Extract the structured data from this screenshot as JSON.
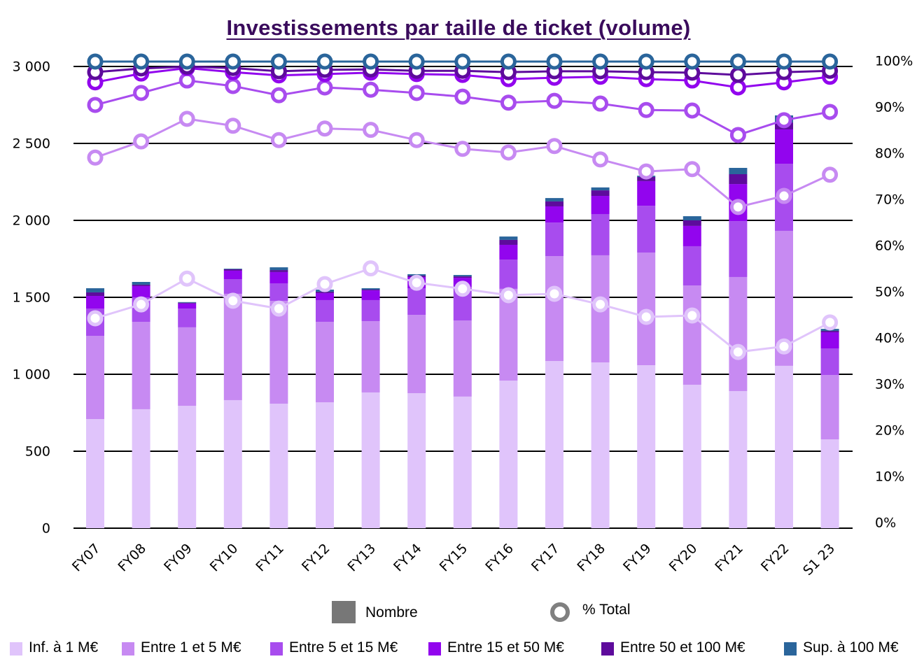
{
  "chart_data": {
    "type": "bar",
    "title": "Investissements par taille de ticket (volume)",
    "xlabel": "",
    "ylabel": "",
    "categories": [
      "FY07",
      "FY08",
      "FY09",
      "FY10",
      "FY11",
      "FY12",
      "FY13",
      "FY14",
      "FY15",
      "FY16",
      "FY17",
      "FY18",
      "FY19",
      "FY20",
      "FY21",
      "FY22",
      "S1 23"
    ],
    "left_axis": {
      "ylim": [
        0,
        3000
      ],
      "ticks": [
        0,
        500,
        1000,
        1500,
        2000,
        2500,
        3000
      ],
      "tick_labels": [
        "0",
        "500",
        "1 000",
        "1 500",
        "2 000",
        "2 500",
        "3 000"
      ],
      "grid": true
    },
    "right_axis": {
      "ylim": [
        0,
        100
      ],
      "ticks": [
        0,
        10,
        20,
        30,
        40,
        50,
        60,
        70,
        80,
        90,
        100
      ],
      "tick_labels": [
        "0%",
        "10%",
        "20%",
        "30%",
        "40%",
        "50%",
        "60%",
        "70%",
        "80%",
        "90%",
        "100%"
      ]
    },
    "stacked": true,
    "series": [
      {
        "name": "Inf. à 1 M€",
        "color": "#e0c4fb",
        "values": [
          709,
          773,
          795,
          832,
          809,
          818,
          882,
          877,
          855,
          959,
          1086,
          1077,
          1059,
          932,
          891,
          1055,
          577
        ]
      },
      {
        "name": "Entre 1 et 5 M€",
        "color": "#c78af2",
        "values": [
          541,
          567,
          510,
          691,
          668,
          523,
          463,
          509,
          495,
          596,
          682,
          696,
          732,
          645,
          741,
          877,
          418
        ]
      },
      {
        "name": "Entre 5 et 15 M€",
        "color": "#a84cee",
        "values": [
          177,
          160,
          122,
          95,
          114,
          141,
          137,
          173,
          218,
          190,
          218,
          268,
          304,
          255,
          363,
          436,
          173
        ]
      },
      {
        "name": "Entre 15 et 50 M€",
        "color": "#9205ee",
        "values": [
          82,
          73,
          33,
          55,
          73,
          45,
          63,
          73,
          59,
          96,
          105,
          118,
          160,
          132,
          241,
          223,
          105
        ]
      },
      {
        "name": "Entre 50 et 100 M€",
        "color": "#5e0b9c",
        "values": [
          23,
          9,
          5,
          9,
          13,
          9,
          5,
          9,
          9,
          32,
          32,
          36,
          27,
          36,
          64,
          45,
          9
        ]
      },
      {
        "name": "Sup. à 100 M€",
        "color": "#2a659b",
        "values": [
          27,
          18,
          4,
          4,
          18,
          14,
          9,
          9,
          9,
          22,
          22,
          19,
          8,
          27,
          41,
          46,
          13
        ]
      }
    ],
    "pct_series_cumulative": [
      {
        "name": "Inf. à 1 M€",
        "color": "#e0c4fb",
        "values": [
          44.4,
          47.4,
          53.0,
          48.2,
          46.5,
          51.8,
          55.2,
          52.1,
          50.8,
          49.4,
          49.7,
          47.4,
          44.7,
          45.0,
          37.1,
          38.3,
          43.5
        ]
      },
      {
        "name": "Entre 1 et 5 M€",
        "color": "#c78af2",
        "values": [
          79.2,
          82.7,
          87.6,
          86.1,
          83.0,
          85.5,
          85.2,
          83.0,
          81.1,
          80.3,
          81.7,
          78.8,
          76.2,
          76.7,
          68.5,
          70.9,
          75.5
        ]
      },
      {
        "name": "Entre 5 et 15 M€",
        "color": "#a84cee",
        "values": [
          90.6,
          93.2,
          95.9,
          94.7,
          92.7,
          94.4,
          93.9,
          93.2,
          92.4,
          91.1,
          91.5,
          90.9,
          89.5,
          89.4,
          84.1,
          87.3,
          89.1
        ]
      },
      {
        "name": "Entre 15 et 50 M€",
        "color": "#9205ee",
        "values": [
          95.5,
          97.4,
          98.6,
          97.7,
          97.0,
          97.3,
          97.6,
          97.3,
          97.1,
          96.2,
          96.5,
          96.7,
          96.2,
          95.9,
          94.4,
          95.5,
          96.7
        ]
      },
      {
        "name": "Entre 50 et 100 M€",
        "color": "#5e0b9c",
        "values": [
          97.7,
          98.5,
          98.9,
          98.6,
          97.9,
          98.2,
          98.3,
          98.0,
          98.0,
          97.7,
          97.9,
          97.9,
          97.7,
          97.6,
          97.1,
          97.7,
          98.0
        ]
      },
      {
        "name": "Sup. à 100 M€",
        "color": "#2a659b",
        "values": [
          100,
          100,
          100,
          100,
          100,
          100,
          100,
          100,
          100,
          100,
          100,
          100,
          100,
          100,
          100,
          100,
          100
        ]
      }
    ],
    "legend": {
      "placement": "bottom",
      "type_entries": [
        {
          "label": "Nombre",
          "symbol": "square",
          "color": "#777777"
        },
        {
          "label": "% Total",
          "symbol": "ring",
          "color": "#808080"
        }
      ]
    }
  }
}
